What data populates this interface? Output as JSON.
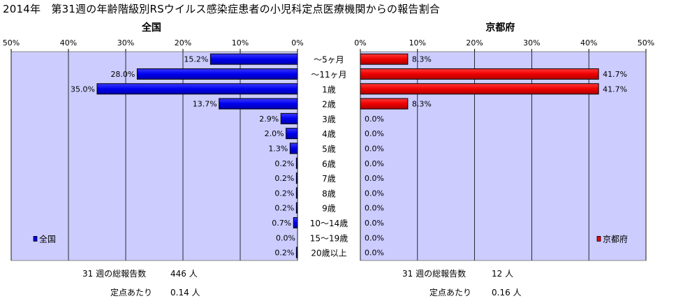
{
  "title": "2014年　第31週の年齢階級別RSウイルス感染症患者の小児科定点医療機関からの報告割合",
  "categories": [
    "～5ヶ月",
    "～11ヶ月",
    "1歳",
    "2歳",
    "3歳",
    "4歳",
    "5歳",
    "6歳",
    "7歳",
    "8歳",
    "9歳",
    "10～14歳",
    "15～19歳",
    "20歳以上"
  ],
  "chart_data": [
    {
      "type": "bar",
      "orientation": "horizontal",
      "direction": "right-to-left",
      "title": "全国",
      "categories": [
        "～5ヶ月",
        "～11ヶ月",
        "1歳",
        "2歳",
        "3歳",
        "4歳",
        "5歳",
        "6歳",
        "7歳",
        "8歳",
        "9歳",
        "10～14歳",
        "15～19歳",
        "20歳以上"
      ],
      "series": [
        {
          "name": "全国",
          "values": [
            15.2,
            28.0,
            35.0,
            13.7,
            2.9,
            2.0,
            1.3,
            0.2,
            0.2,
            0.2,
            0.2,
            0.7,
            0.0,
            0.2
          ],
          "color": "#0000ee"
        }
      ],
      "data_labels": [
        "15.2%",
        "28.0%",
        "35.0%",
        "13.7%",
        "2.9%",
        "2.0%",
        "1.3%",
        "0.2%",
        "0.2%",
        "0.2%",
        "0.2%",
        "0.7%",
        "0.0%",
        "0.2%"
      ],
      "xlim": [
        0,
        50
      ],
      "ticks": [
        "50%",
        "40%",
        "30%",
        "20%",
        "10%",
        "0%"
      ],
      "grid": true,
      "legend_position": "bottom-left",
      "plot_background": "#ccccff"
    },
    {
      "type": "bar",
      "orientation": "horizontal",
      "direction": "left-to-right",
      "title": "京都府",
      "categories": [
        "～5ヶ月",
        "～11ヶ月",
        "1歳",
        "2歳",
        "3歳",
        "4歳",
        "5歳",
        "6歳",
        "7歳",
        "8歳",
        "9歳",
        "10～14歳",
        "15～19歳",
        "20歳以上"
      ],
      "series": [
        {
          "name": "京都府",
          "values": [
            8.3,
            41.7,
            41.7,
            8.3,
            0.0,
            0.0,
            0.0,
            0.0,
            0.0,
            0.0,
            0.0,
            0.0,
            0.0,
            0.0
          ],
          "color": "#ee0000"
        }
      ],
      "data_labels": [
        "8.3%",
        "41.7%",
        "41.7%",
        "8.3%",
        "0.0%",
        "0.0%",
        "0.0%",
        "0.0%",
        "0.0%",
        "0.0%",
        "0.0%",
        "0.0%",
        "0.0%",
        "0.0%"
      ],
      "xlim": [
        0,
        50
      ],
      "ticks": [
        "0%",
        "10%",
        "20%",
        "30%",
        "40%",
        "50%"
      ],
      "grid": true,
      "legend_position": "bottom-right",
      "plot_background": "#ccccff"
    }
  ],
  "footer": {
    "left": {
      "total_label": "31 週の総報告数",
      "total_value": "446 人",
      "per_label": "定点あたり",
      "per_value": "0.14 人"
    },
    "right": {
      "total_label": "31 週の総報告数",
      "total_value": "12 人",
      "per_label": "定点あたり",
      "per_value": "0.16 人"
    }
  }
}
